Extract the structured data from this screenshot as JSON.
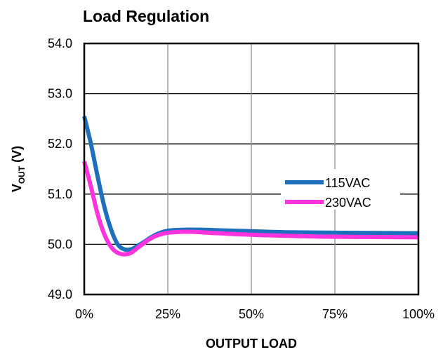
{
  "chart_data": {
    "type": "line",
    "title": "Load Regulation",
    "xlabel": "OUTPUT LOAD",
    "ylabel_main": "V",
    "ylabel_sub": "OUT",
    "ylabel_unit": " (V)",
    "xlim": [
      0,
      100
    ],
    "ylim": [
      49.0,
      54.0
    ],
    "x_ticks": [
      0,
      25,
      50,
      75,
      100
    ],
    "x_tick_labels": [
      "0%",
      "25%",
      "50%",
      "75%",
      "100%"
    ],
    "y_ticks": [
      49.0,
      50.0,
      51.0,
      52.0,
      53.0,
      54.0
    ],
    "y_tick_labels": [
      "49.0",
      "50.0",
      "51.0",
      "52.0",
      "53.0",
      "54.0"
    ],
    "grid": true,
    "legend_position": "right-middle",
    "series": [
      {
        "name": "115VAC",
        "color": "#1f6fbf",
        "x": [
          0,
          2,
          4,
          6,
          8,
          10,
          12,
          14,
          16,
          18,
          20,
          22,
          25,
          30,
          35,
          40,
          50,
          60,
          75,
          100
        ],
        "y": [
          52.55,
          52.0,
          51.35,
          50.75,
          50.3,
          50.0,
          49.9,
          49.9,
          49.97,
          50.05,
          50.14,
          50.21,
          50.27,
          50.29,
          50.29,
          50.28,
          50.26,
          50.24,
          50.23,
          50.22
        ]
      },
      {
        "name": "230VAC",
        "color": "#ff33dd",
        "x": [
          0,
          2,
          4,
          6,
          8,
          10,
          12,
          14,
          16,
          18,
          20,
          22,
          25,
          30,
          35,
          40,
          50,
          60,
          75,
          100
        ],
        "y": [
          51.65,
          51.15,
          50.6,
          50.2,
          49.95,
          49.83,
          49.8,
          49.83,
          49.93,
          50.03,
          50.12,
          50.18,
          50.23,
          50.25,
          50.24,
          50.22,
          50.19,
          50.17,
          50.15,
          50.14
        ]
      }
    ]
  }
}
